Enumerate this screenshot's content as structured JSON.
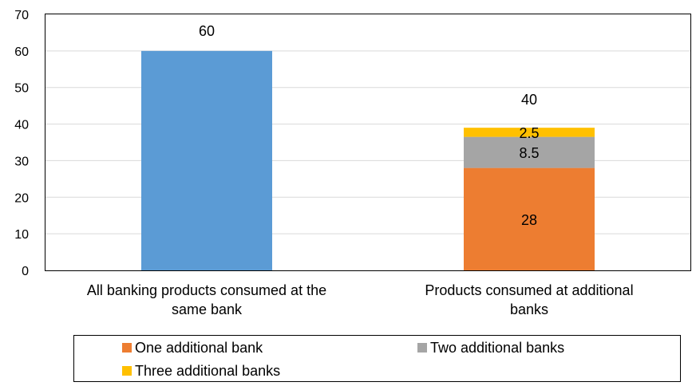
{
  "chart_data": {
    "type": "bar",
    "stacked": true,
    "categories": [
      [
        "All banking products consumed at the",
        "same bank"
      ],
      [
        "Products consumed at additional",
        "banks"
      ]
    ],
    "series": [
      {
        "key": "same",
        "values": [
          60,
          null
        ],
        "color": "#5B9BD5"
      },
      {
        "key": "one",
        "name": "One additional bank",
        "values": [
          null,
          28
        ],
        "color": "#ED7D31"
      },
      {
        "key": "two",
        "name": "Two additional banks",
        "values": [
          null,
          8.5
        ],
        "color": "#A5A5A5"
      },
      {
        "key": "three",
        "name": "Three additional banks",
        "values": [
          null,
          2.5
        ],
        "color": "#FFC000"
      }
    ],
    "totals": [
      60,
      40
    ],
    "y_ticks": [
      0,
      10,
      20,
      30,
      40,
      50,
      60,
      70
    ],
    "ylim": [
      0,
      70
    ],
    "grid": true,
    "legend_position": "bottom"
  }
}
